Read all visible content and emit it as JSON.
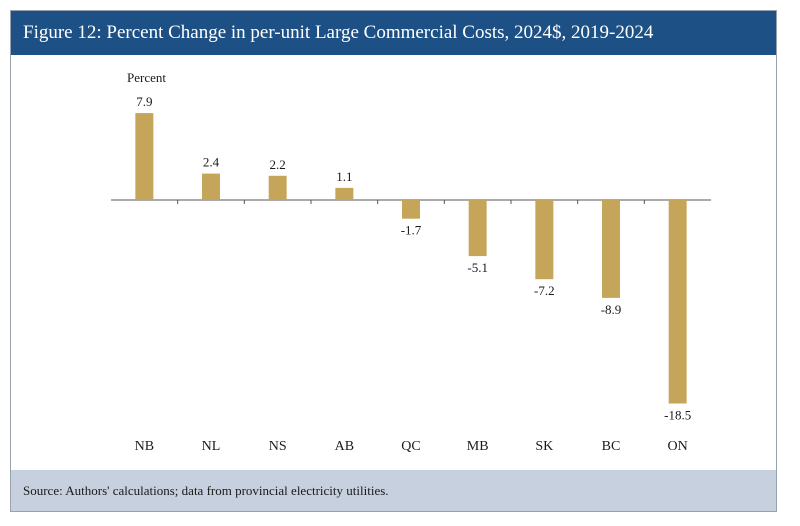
{
  "title": "Figure 12: Percent Change in per-unit Large Commercial Costs, 2024$, 2019-2024",
  "footer": "Source: Authors' calculations; data from provincial electricity utilities.",
  "colors": {
    "title_bg": "#1d5186",
    "bar": "#c4a55a",
    "footer_bg": "#c7d0df"
  },
  "chart_data": {
    "type": "bar",
    "title": "Figure 12: Percent Change in per-unit Large Commercial Costs, 2024$, 2019-2024",
    "ylabel": "Percent",
    "xlabel": "",
    "categories": [
      "NB",
      "NL",
      "NS",
      "AB",
      "QC",
      "MB",
      "SK",
      "BC",
      "ON"
    ],
    "values": [
      7.9,
      2.4,
      2.2,
      1.1,
      -1.7,
      -5.1,
      -7.2,
      -8.9,
      -18.5
    ],
    "data_labels": [
      "7.9",
      "2.4",
      "2.2",
      "1.1",
      "-1.7",
      "-5.1",
      "-7.2",
      "-8.9",
      "-18.5"
    ],
    "grid": false,
    "legend": "none"
  }
}
